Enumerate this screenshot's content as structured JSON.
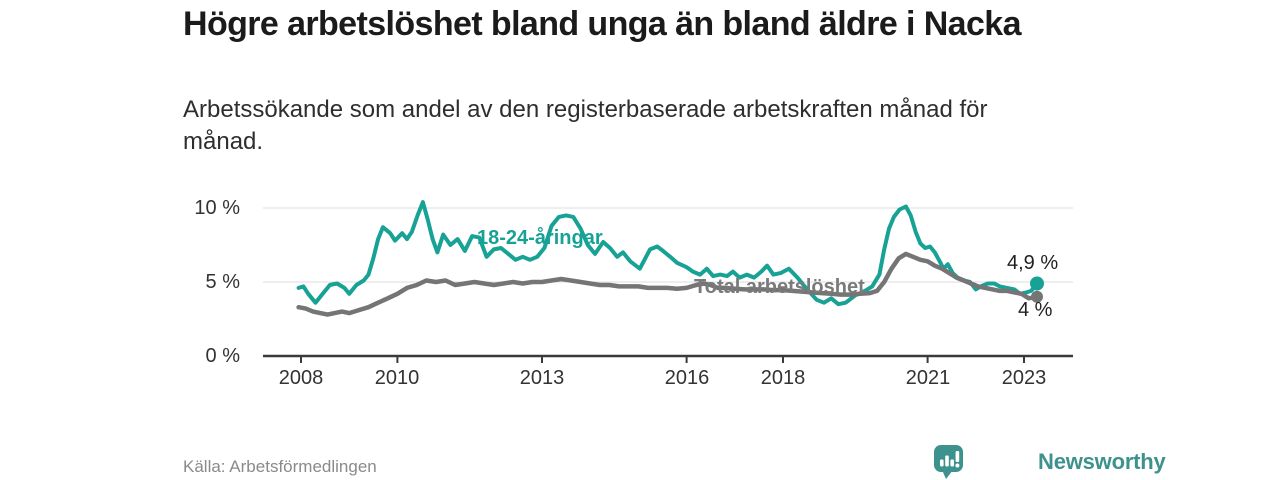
{
  "header": {
    "title": "Högre arbetslöshet bland unga än bland äldre i Nacka",
    "subtitle_lines": [
      "Arbetssökande som andel av den registerbaserade arbetskraften månad för",
      "månad."
    ]
  },
  "footer": {
    "source": "Källa: Arbetsförmedlingen",
    "brand": "Newsworthy"
  },
  "colors": {
    "accent_teal": "#17a295",
    "line_gray": "#757575",
    "label_gray": "#7a7a7a",
    "grid": "#dcdcdc",
    "axis": "#3a3a3a",
    "brand_teal": "#3e928d",
    "title_text": "#1b1b1b",
    "end_label_text": "#1f1f1f"
  },
  "chart_data": {
    "type": "line",
    "title": "Högre arbetslöshet bland unga än bland äldre i Nacka",
    "subtitle": "Arbetssökande som andel av den registerbaserade arbetskraften månad för månad.",
    "xlabel": "",
    "ylabel": "",
    "grid": "horizontal",
    "legend_position": "inline-labels",
    "x_axis": {
      "ticks": [
        2008,
        2010,
        2013,
        2016,
        2018,
        2021,
        2023
      ],
      "tick_labels": [
        "2008",
        "2010",
        "2013",
        "2016",
        "2018",
        "2021",
        "2023"
      ],
      "range": [
        2007.9,
        2024.1
      ]
    },
    "y_axis": {
      "ticks": [
        0,
        5,
        10
      ],
      "tick_labels": [
        "0 %",
        "5 %",
        "10 %"
      ],
      "range": [
        0,
        10.6
      ],
      "unit": "%"
    },
    "series": [
      {
        "name": "18-24-åringar",
        "color": "#17a295",
        "end_label": "4,9 %",
        "end_value": 4.9,
        "points": [
          [
            2007.95,
            4.6
          ],
          [
            2008.05,
            4.7
          ],
          [
            2008.15,
            4.2
          ],
          [
            2008.3,
            3.6
          ],
          [
            2008.45,
            4.2
          ],
          [
            2008.6,
            4.8
          ],
          [
            2008.75,
            4.9
          ],
          [
            2008.9,
            4.6
          ],
          [
            2009.0,
            4.2
          ],
          [
            2009.15,
            4.8
          ],
          [
            2009.3,
            5.1
          ],
          [
            2009.4,
            5.5
          ],
          [
            2009.5,
            6.6
          ],
          [
            2009.6,
            7.9
          ],
          [
            2009.7,
            8.7
          ],
          [
            2009.85,
            8.3
          ],
          [
            2009.95,
            7.8
          ],
          [
            2010.1,
            8.3
          ],
          [
            2010.2,
            7.9
          ],
          [
            2010.3,
            8.4
          ],
          [
            2010.42,
            9.5
          ],
          [
            2010.53,
            10.4
          ],
          [
            2010.63,
            9.2
          ],
          [
            2010.73,
            7.9
          ],
          [
            2010.83,
            7.0
          ],
          [
            2010.95,
            8.2
          ],
          [
            2011.1,
            7.5
          ],
          [
            2011.25,
            7.9
          ],
          [
            2011.4,
            7.1
          ],
          [
            2011.55,
            8.1
          ],
          [
            2011.7,
            8.0
          ],
          [
            2011.85,
            6.7
          ],
          [
            2012.0,
            7.2
          ],
          [
            2012.15,
            7.3
          ],
          [
            2012.3,
            6.9
          ],
          [
            2012.45,
            6.5
          ],
          [
            2012.6,
            6.7
          ],
          [
            2012.75,
            6.5
          ],
          [
            2012.9,
            6.7
          ],
          [
            2013.05,
            7.3
          ],
          [
            2013.2,
            8.8
          ],
          [
            2013.35,
            9.4
          ],
          [
            2013.5,
            9.5
          ],
          [
            2013.65,
            9.4
          ],
          [
            2013.8,
            8.6
          ],
          [
            2013.95,
            7.5
          ],
          [
            2014.1,
            6.9
          ],
          [
            2014.27,
            7.7
          ],
          [
            2014.41,
            7.3
          ],
          [
            2014.56,
            6.7
          ],
          [
            2014.68,
            7.0
          ],
          [
            2014.83,
            6.4
          ],
          [
            2015.03,
            5.9
          ],
          [
            2015.24,
            7.2
          ],
          [
            2015.39,
            7.4
          ],
          [
            2015.51,
            7.1
          ],
          [
            2015.66,
            6.7
          ],
          [
            2015.8,
            6.3
          ],
          [
            2016.0,
            6.0
          ],
          [
            2016.13,
            5.7
          ],
          [
            2016.28,
            5.5
          ],
          [
            2016.42,
            5.9
          ],
          [
            2016.55,
            5.4
          ],
          [
            2016.7,
            5.5
          ],
          [
            2016.84,
            5.4
          ],
          [
            2016.96,
            5.7
          ],
          [
            2017.1,
            5.3
          ],
          [
            2017.25,
            5.5
          ],
          [
            2017.4,
            5.3
          ],
          [
            2017.55,
            5.7
          ],
          [
            2017.67,
            6.1
          ],
          [
            2017.8,
            5.5
          ],
          [
            2017.95,
            5.6
          ],
          [
            2018.12,
            5.9
          ],
          [
            2018.3,
            5.3
          ],
          [
            2018.5,
            4.5
          ],
          [
            2018.7,
            3.8
          ],
          [
            2018.85,
            3.6
          ],
          [
            2019.0,
            3.9
          ],
          [
            2019.15,
            3.5
          ],
          [
            2019.3,
            3.6
          ],
          [
            2019.5,
            4.1
          ],
          [
            2019.7,
            4.4
          ],
          [
            2019.85,
            4.7
          ],
          [
            2020.0,
            5.5
          ],
          [
            2020.1,
            7.2
          ],
          [
            2020.2,
            8.6
          ],
          [
            2020.3,
            9.4
          ],
          [
            2020.42,
            9.9
          ],
          [
            2020.55,
            10.1
          ],
          [
            2020.65,
            9.5
          ],
          [
            2020.75,
            8.4
          ],
          [
            2020.85,
            7.6
          ],
          [
            2020.95,
            7.3
          ],
          [
            2021.05,
            7.4
          ],
          [
            2021.15,
            7.0
          ],
          [
            2021.25,
            6.4
          ],
          [
            2021.33,
            5.9
          ],
          [
            2021.42,
            6.2
          ],
          [
            2021.52,
            5.6
          ],
          [
            2021.62,
            5.3
          ],
          [
            2021.75,
            5.1
          ],
          [
            2021.88,
            5.0
          ],
          [
            2022.0,
            4.5
          ],
          [
            2022.1,
            4.7
          ],
          [
            2022.25,
            4.9
          ],
          [
            2022.38,
            4.9
          ],
          [
            2022.5,
            4.7
          ],
          [
            2022.65,
            4.6
          ],
          [
            2022.8,
            4.5
          ],
          [
            2022.92,
            4.2
          ],
          [
            2023.05,
            4.3
          ],
          [
            2023.15,
            4.4
          ],
          [
            2023.27,
            4.9
          ]
        ]
      },
      {
        "name": "Total arbetslöshet",
        "color": "#757575",
        "end_label": "4 %",
        "end_value": 4.0,
        "points": [
          [
            2007.95,
            3.3
          ],
          [
            2008.1,
            3.2
          ],
          [
            2008.25,
            3.0
          ],
          [
            2008.4,
            2.9
          ],
          [
            2008.55,
            2.8
          ],
          [
            2008.7,
            2.9
          ],
          [
            2008.85,
            3.0
          ],
          [
            2009.0,
            2.9
          ],
          [
            2009.2,
            3.1
          ],
          [
            2009.4,
            3.3
          ],
          [
            2009.6,
            3.6
          ],
          [
            2009.8,
            3.9
          ],
          [
            2010.0,
            4.2
          ],
          [
            2010.2,
            4.6
          ],
          [
            2010.4,
            4.8
          ],
          [
            2010.6,
            5.1
          ],
          [
            2010.8,
            5.0
          ],
          [
            2011.0,
            5.1
          ],
          [
            2011.2,
            4.8
          ],
          [
            2011.4,
            4.9
          ],
          [
            2011.6,
            5.0
          ],
          [
            2011.8,
            4.9
          ],
          [
            2012.0,
            4.8
          ],
          [
            2012.2,
            4.9
          ],
          [
            2012.4,
            5.0
          ],
          [
            2012.6,
            4.9
          ],
          [
            2012.8,
            5.0
          ],
          [
            2013.0,
            5.0
          ],
          [
            2013.2,
            5.1
          ],
          [
            2013.4,
            5.2
          ],
          [
            2013.6,
            5.1
          ],
          [
            2013.8,
            5.0
          ],
          [
            2014.0,
            4.9
          ],
          [
            2014.2,
            4.8
          ],
          [
            2014.4,
            4.8
          ],
          [
            2014.6,
            4.7
          ],
          [
            2014.8,
            4.7
          ],
          [
            2015.0,
            4.7
          ],
          [
            2015.2,
            4.6
          ],
          [
            2015.4,
            4.6
          ],
          [
            2015.6,
            4.6
          ],
          [
            2015.8,
            4.55
          ],
          [
            2016.0,
            4.6
          ],
          [
            2016.2,
            4.8
          ],
          [
            2016.35,
            4.9
          ],
          [
            2016.5,
            4.8
          ],
          [
            2016.65,
            4.6
          ],
          [
            2016.8,
            4.6
          ],
          [
            2017.0,
            4.55
          ],
          [
            2017.2,
            4.5
          ],
          [
            2017.4,
            4.5
          ],
          [
            2017.6,
            4.5
          ],
          [
            2017.8,
            4.45
          ],
          [
            2018.0,
            4.45
          ],
          [
            2018.2,
            4.4
          ],
          [
            2018.4,
            4.35
          ],
          [
            2018.6,
            4.3
          ],
          [
            2018.8,
            4.25
          ],
          [
            2019.0,
            4.2
          ],
          [
            2019.2,
            4.15
          ],
          [
            2019.4,
            4.15
          ],
          [
            2019.6,
            4.2
          ],
          [
            2019.8,
            4.25
          ],
          [
            2019.95,
            4.4
          ],
          [
            2020.1,
            5.0
          ],
          [
            2020.25,
            5.9
          ],
          [
            2020.4,
            6.6
          ],
          [
            2020.55,
            6.9
          ],
          [
            2020.7,
            6.7
          ],
          [
            2020.85,
            6.5
          ],
          [
            2021.0,
            6.4
          ],
          [
            2021.15,
            6.1
          ],
          [
            2021.3,
            5.9
          ],
          [
            2021.45,
            5.6
          ],
          [
            2021.6,
            5.3
          ],
          [
            2021.75,
            5.1
          ],
          [
            2021.9,
            4.9
          ],
          [
            2022.05,
            4.7
          ],
          [
            2022.2,
            4.6
          ],
          [
            2022.35,
            4.5
          ],
          [
            2022.5,
            4.4
          ],
          [
            2022.65,
            4.4
          ],
          [
            2022.8,
            4.3
          ],
          [
            2022.95,
            4.2
          ],
          [
            2023.1,
            3.9
          ],
          [
            2023.27,
            4.0
          ]
        ]
      }
    ]
  }
}
